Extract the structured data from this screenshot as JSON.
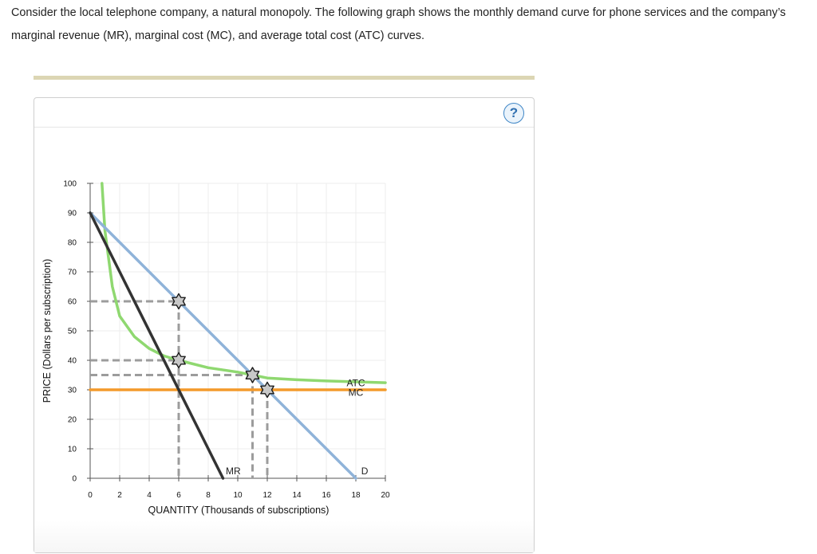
{
  "question": {
    "text": "Consider the local telephone company, a natural monopoly. The following graph shows the monthly demand curve for phone services and the company’s marginal revenue (MR), marginal cost (MC), and average total cost (ATC) curves."
  },
  "panel": {
    "help_icon": "question-mark-icon",
    "help_symbol": "?"
  },
  "chart_data": {
    "type": "line",
    "xlabel": "QUANTITY (Thousands of subscriptions)",
    "ylabel": "PRICE (Dollars per subscription)",
    "xlim": [
      0,
      20
    ],
    "ylim": [
      0,
      100
    ],
    "x_ticks": [
      0,
      2,
      4,
      6,
      8,
      10,
      12,
      14,
      16,
      18,
      20
    ],
    "y_ticks": [
      0,
      10,
      20,
      30,
      40,
      50,
      60,
      70,
      80,
      90,
      100
    ],
    "grid": true,
    "colors": {
      "demand": "#8fb3d9",
      "mr": "#333333",
      "atc": "#8fd870",
      "mc": "#f39a2b",
      "guide": "#9c9c9c",
      "grid": "#ececec"
    },
    "series": [
      {
        "name": "D",
        "label_at": [
          18.6,
          2.4
        ],
        "points": [
          [
            0,
            90
          ],
          [
            18,
            0
          ]
        ]
      },
      {
        "name": "MR",
        "label_at": [
          10.2,
          2.4
        ],
        "label_anchor": "end",
        "points": [
          [
            0,
            90
          ],
          [
            9,
            0
          ]
        ]
      },
      {
        "name": "ATC",
        "label_at": [
          18.0,
          32.3
        ],
        "label_anchor": "middle",
        "points": [
          [
            0.8,
            100
          ],
          [
            1,
            84
          ],
          [
            1.5,
            65
          ],
          [
            2,
            55
          ],
          [
            3,
            48
          ],
          [
            4,
            44
          ],
          [
            5,
            41.5
          ],
          [
            6,
            40
          ],
          [
            8,
            37.5
          ],
          [
            10,
            36
          ],
          [
            11,
            35
          ],
          [
            12,
            34
          ],
          [
            14,
            33.4
          ],
          [
            16,
            33
          ],
          [
            18,
            32.7
          ],
          [
            20,
            32.4
          ]
        ]
      },
      {
        "name": "MC",
        "label_at": [
          18.0,
          29.0
        ],
        "label_anchor": "middle",
        "points": [
          [
            0,
            30
          ],
          [
            20,
            30
          ]
        ]
      }
    ],
    "markers": [
      [
        6,
        60
      ],
      [
        6,
        40
      ],
      [
        11,
        35
      ],
      [
        12,
        30
      ]
    ],
    "guides": {
      "horizontal": [
        [
          6,
          60
        ],
        [
          6,
          40
        ],
        [
          11,
          35
        ],
        [
          12,
          30
        ]
      ],
      "vertical": [
        [
          6,
          60
        ],
        [
          11,
          35
        ],
        [
          12,
          30
        ]
      ]
    }
  }
}
